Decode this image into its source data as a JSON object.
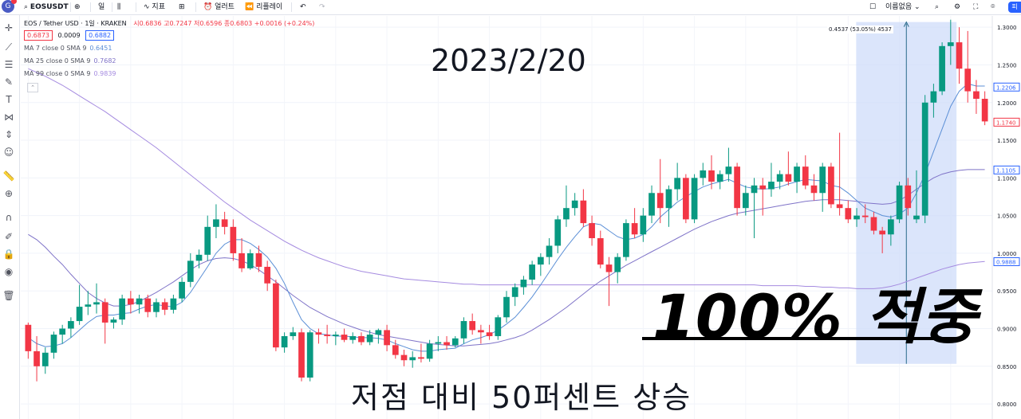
{
  "toolbar": {
    "logo": "G",
    "symbol": "EOSUSDT",
    "interval": "일",
    "indicators": "지표",
    "alert": "얼러트",
    "replay": "리플레이",
    "undo_icon": "undo-icon",
    "redo_icon": "redo-icon",
    "right_label": "이름없음"
  },
  "legend": {
    "title": "EOS / Tether USD · 1일 · KRAKEN",
    "ohlc": "시0.6836 고0.7247 저0.6596 종0.6803 +0.0016 (+0.24%)",
    "bid": "0.6873",
    "spread": "0.0009",
    "ask": "0.6882",
    "ma7_label": "MA 7 close 0 SMA 9",
    "ma7_value": "0.6451",
    "ma25_label": "MA 25 close 0 SMA 9",
    "ma25_value": "0.7682",
    "ma99_label": "MA 99 close 0 SMA 9",
    "ma99_value": "0.9839"
  },
  "overlay": {
    "date": "2023/2/20",
    "claim": "100% 적중",
    "caption": "저점 대비 50퍼센트 상승",
    "measure": "0.4537 (53.05%) 4537"
  },
  "colors": {
    "up": "#089981",
    "down": "#f23645",
    "ma7": "#5b8fd6",
    "ma25": "#7f73c8",
    "ma99": "#a58be0",
    "measure_fill": "#cfdcf9",
    "measure_line": "#2962ff"
  },
  "chart_data": {
    "type": "candlestick",
    "title": "EOS / Tether USD · 1일 · KRAKEN",
    "ylim": [
      0.78,
      1.315
    ],
    "y_ticks": [
      0.8,
      0.85,
      0.9,
      0.95,
      1.0,
      1.05,
      1.1,
      1.15,
      1.2,
      1.25,
      1.3
    ],
    "y_tick_labels": [
      "0.8000",
      "0.8500",
      "0.9000",
      "0.9500",
      "1.0000",
      "1.0500",
      "1.1000",
      "1.1500",
      "1.2000",
      "1.2500",
      "1.3000"
    ],
    "price_tags": [
      {
        "value": 1.2206,
        "label": "1.2206",
        "color": "#2962ff"
      },
      {
        "value": 1.174,
        "label": "1.1740",
        "color": "#f23645"
      },
      {
        "value": 1.1105,
        "label": "1.1105",
        "color": "#2962ff"
      },
      {
        "value": 0.9888,
        "label": "0.9888",
        "color": "#2962ff"
      }
    ],
    "candles": [
      [
        0.905,
        0.908,
        0.86,
        0.87
      ],
      [
        0.87,
        0.89,
        0.83,
        0.85
      ],
      [
        0.85,
        0.875,
        0.84,
        0.868
      ],
      [
        0.868,
        0.896,
        0.86,
        0.892
      ],
      [
        0.892,
        0.905,
        0.88,
        0.9
      ],
      [
        0.9,
        0.915,
        0.888,
        0.91
      ],
      [
        0.91,
        0.958,
        0.905,
        0.929
      ],
      [
        0.929,
        0.95,
        0.918,
        0.932
      ],
      [
        0.932,
        0.96,
        0.92,
        0.935
      ],
      [
        0.935,
        0.94,
        0.88,
        0.908
      ],
      [
        0.908,
        0.915,
        0.9,
        0.912
      ],
      [
        0.912,
        0.945,
        0.905,
        0.94
      ],
      [
        0.94,
        0.95,
        0.92,
        0.932
      ],
      [
        0.932,
        0.945,
        0.92,
        0.94
      ],
      [
        0.94,
        0.945,
        0.915,
        0.922
      ],
      [
        0.922,
        0.94,
        0.915,
        0.935
      ],
      [
        0.935,
        0.94,
        0.918,
        0.925
      ],
      [
        0.925,
        0.945,
        0.92,
        0.94
      ],
      [
        0.94,
        0.968,
        0.935,
        0.962
      ],
      [
        0.962,
        1.0,
        0.955,
        0.99
      ],
      [
        0.99,
        1.005,
        0.98,
        0.998
      ],
      [
        0.998,
        1.05,
        0.99,
        1.035
      ],
      [
        1.035,
        1.065,
        1.02,
        1.045
      ],
      [
        1.045,
        1.055,
        1.025,
        1.035
      ],
      [
        1.035,
        1.045,
        0.99,
        1.0
      ],
      [
        1.0,
        1.02,
        0.975,
        0.98
      ],
      [
        0.98,
        1.005,
        0.978,
        1.0
      ],
      [
        1.0,
        1.01,
        0.975,
        0.982
      ],
      [
        0.982,
        0.99,
        0.95,
        0.96
      ],
      [
        0.96,
        0.965,
        0.87,
        0.875
      ],
      [
        0.875,
        0.895,
        0.868,
        0.89
      ],
      [
        0.89,
        0.902,
        0.885,
        0.895
      ],
      [
        0.895,
        0.9,
        0.83,
        0.835
      ],
      [
        0.835,
        0.898,
        0.83,
        0.895
      ],
      [
        0.895,
        0.9,
        0.88,
        0.892
      ],
      [
        0.892,
        0.905,
        0.88,
        0.89
      ],
      [
        0.89,
        0.896,
        0.878,
        0.892
      ],
      [
        0.892,
        0.9,
        0.882,
        0.885
      ],
      [
        0.885,
        0.895,
        0.88,
        0.89
      ],
      [
        0.89,
        0.895,
        0.878,
        0.882
      ],
      [
        0.882,
        0.898,
        0.878,
        0.892
      ],
      [
        0.892,
        0.9,
        0.88,
        0.898
      ],
      [
        0.898,
        0.905,
        0.87,
        0.878
      ],
      [
        0.878,
        0.885,
        0.86,
        0.865
      ],
      [
        0.865,
        0.872,
        0.85,
        0.858
      ],
      [
        0.858,
        0.87,
        0.848,
        0.862
      ],
      [
        0.862,
        0.88,
        0.855,
        0.86
      ],
      [
        0.86,
        0.885,
        0.856,
        0.88
      ],
      [
        0.88,
        0.89,
        0.87,
        0.882
      ],
      [
        0.882,
        0.89,
        0.872,
        0.878
      ],
      [
        0.878,
        0.89,
        0.875,
        0.887
      ],
      [
        0.887,
        0.915,
        0.88,
        0.91
      ],
      [
        0.91,
        0.92,
        0.892,
        0.898
      ],
      [
        0.898,
        0.905,
        0.88,
        0.895
      ],
      [
        0.895,
        0.905,
        0.885,
        0.89
      ],
      [
        0.89,
        0.918,
        0.885,
        0.915
      ],
      [
        0.915,
        0.95,
        0.908,
        0.942
      ],
      [
        0.942,
        0.96,
        0.93,
        0.955
      ],
      [
        0.955,
        0.97,
        0.945,
        0.965
      ],
      [
        0.965,
        0.99,
        0.958,
        0.985
      ],
      [
        0.985,
        1.0,
        0.97,
        0.995
      ],
      [
        0.995,
        1.02,
        0.985,
        1.01
      ],
      [
        1.01,
        1.05,
        1.0,
        1.045
      ],
      [
        1.045,
        1.09,
        1.035,
        1.06
      ],
      [
        1.06,
        1.08,
        1.05,
        1.07
      ],
      [
        1.07,
        1.085,
        1.035,
        1.04
      ],
      [
        1.04,
        1.05,
        1.01,
        1.02
      ],
      [
        1.02,
        1.03,
        0.98,
        0.985
      ],
      [
        0.985,
        0.995,
        0.93,
        0.975
      ],
      [
        0.975,
        1.0,
        0.96,
        0.995
      ],
      [
        0.995,
        1.045,
        0.99,
        1.04
      ],
      [
        1.04,
        1.06,
        1.02,
        1.025
      ],
      [
        1.025,
        1.06,
        1.015,
        1.05
      ],
      [
        1.05,
        1.09,
        1.04,
        1.08
      ],
      [
        1.08,
        1.125,
        1.04,
        1.06
      ],
      [
        1.06,
        1.09,
        1.035,
        1.085
      ],
      [
        1.085,
        1.12,
        1.07,
        1.1
      ],
      [
        1.1,
        1.105,
        1.04,
        1.045
      ],
      [
        1.045,
        1.105,
        1.04,
        1.1
      ],
      [
        1.1,
        1.12,
        1.09,
        1.11
      ],
      [
        1.11,
        1.13,
        1.085,
        1.095
      ],
      [
        1.095,
        1.11,
        1.085,
        1.105
      ],
      [
        1.105,
        1.14,
        1.095,
        1.115
      ],
      [
        1.115,
        1.12,
        1.05,
        1.06
      ],
      [
        1.06,
        1.09,
        1.05,
        1.08
      ],
      [
        1.08,
        1.1,
        1.02,
        1.09
      ],
      [
        1.09,
        1.1,
        1.05,
        1.085
      ],
      [
        1.085,
        1.12,
        1.075,
        1.095
      ],
      [
        1.095,
        1.11,
        1.085,
        1.105
      ],
      [
        1.105,
        1.135,
        1.09,
        1.095
      ],
      [
        1.095,
        1.12,
        1.08,
        1.115
      ],
      [
        1.115,
        1.13,
        1.085,
        1.09
      ],
      [
        1.09,
        1.105,
        1.07,
        1.08
      ],
      [
        1.08,
        1.12,
        1.055,
        1.115
      ],
      [
        1.115,
        1.12,
        1.06,
        1.065
      ],
      [
        1.065,
        1.16,
        1.05,
        1.06
      ],
      [
        1.06,
        1.07,
        1.04,
        1.045
      ],
      [
        1.045,
        1.06,
        1.035,
        1.05
      ],
      [
        1.05,
        1.065,
        1.04,
        1.048
      ],
      [
        1.048,
        1.055,
        1.025,
        1.03
      ],
      [
        1.03,
        1.035,
        1.0,
        1.025
      ],
      [
        1.025,
        1.05,
        1.01,
        1.045
      ],
      [
        1.045,
        1.095,
        1.04,
        1.09
      ],
      [
        1.09,
        1.1,
        1.05,
        1.06
      ],
      [
        1.045,
        1.11,
        1.04,
        1.05
      ],
      [
        1.05,
        1.21,
        1.04,
        1.2
      ],
      [
        1.2,
        1.225,
        1.18,
        1.215
      ],
      [
        1.215,
        1.28,
        1.21,
        1.275
      ],
      [
        1.275,
        1.31,
        1.25,
        1.28
      ],
      [
        1.28,
        1.3,
        1.225,
        1.245
      ],
      [
        1.245,
        1.295,
        1.2,
        1.215
      ],
      [
        1.215,
        1.23,
        1.185,
        1.205
      ],
      [
        1.205,
        1.215,
        1.17,
        1.175
      ]
    ],
    "ma7": [
      0.888,
      0.88,
      0.876,
      0.877,
      0.88,
      0.888,
      0.898,
      0.908,
      0.916,
      0.918,
      0.918,
      0.92,
      0.921,
      0.926,
      0.93,
      0.932,
      0.93,
      0.929,
      0.935,
      0.948,
      0.965,
      0.982,
      1.0,
      1.012,
      1.018,
      1.018,
      1.013,
      1.005,
      0.995,
      0.98,
      0.96,
      0.935,
      0.912,
      0.9,
      0.893,
      0.892,
      0.89,
      0.89,
      0.889,
      0.888,
      0.888,
      0.887,
      0.885,
      0.88,
      0.876,
      0.872,
      0.87,
      0.87,
      0.872,
      0.873,
      0.874,
      0.88,
      0.885,
      0.888,
      0.892,
      0.898,
      0.906,
      0.915,
      0.928,
      0.942,
      0.958,
      0.975,
      0.992,
      1.008,
      1.022,
      1.035,
      1.04,
      1.038,
      1.03,
      1.022,
      1.018,
      1.02,
      1.025,
      1.035,
      1.048,
      1.058,
      1.068,
      1.075,
      1.082,
      1.088,
      1.092,
      1.095,
      1.098,
      1.093,
      1.088,
      1.086,
      1.085,
      1.086,
      1.088,
      1.092,
      1.095,
      1.098,
      1.097,
      1.096,
      1.09,
      1.088,
      1.08,
      1.07,
      1.06,
      1.055,
      1.05,
      1.048,
      1.052,
      1.06,
      1.08,
      1.105,
      1.135,
      1.165,
      1.195,
      1.215,
      1.225,
      1.222,
      1.222
    ],
    "ma25": [
      1.025,
      1.018,
      1.008,
      0.996,
      0.985,
      0.972,
      0.96,
      0.948,
      0.94,
      0.934,
      0.93,
      0.93,
      0.932,
      0.936,
      0.942,
      0.948,
      0.955,
      0.962,
      0.97,
      0.978,
      0.985,
      0.99,
      0.993,
      0.994,
      0.993,
      0.99,
      0.985,
      0.978,
      0.97,
      0.962,
      0.953,
      0.944,
      0.936,
      0.928,
      0.922,
      0.916,
      0.911,
      0.906,
      0.902,
      0.898,
      0.895,
      0.892,
      0.89,
      0.888,
      0.886,
      0.884,
      0.882,
      0.88,
      0.879,
      0.878,
      0.877,
      0.877,
      0.878,
      0.879,
      0.88,
      0.882,
      0.885,
      0.888,
      0.892,
      0.898,
      0.905,
      0.912,
      0.92,
      0.928,
      0.937,
      0.946,
      0.955,
      0.963,
      0.97,
      0.977,
      0.984,
      0.99,
      0.996,
      1.002,
      1.008,
      1.014,
      1.02,
      1.026,
      1.032,
      1.037,
      1.042,
      1.046,
      1.05,
      1.053,
      1.055,
      1.057,
      1.059,
      1.061,
      1.063,
      1.065,
      1.067,
      1.069,
      1.07,
      1.071,
      1.071,
      1.071,
      1.07,
      1.069,
      1.067,
      1.066,
      1.065,
      1.066,
      1.07,
      1.077,
      1.085,
      1.093,
      1.1,
      1.105,
      1.108,
      1.11,
      1.111,
      1.111,
      1.111
    ],
    "ma99": [
      1.245,
      1.24,
      1.235,
      1.229,
      1.223,
      1.216,
      1.209,
      1.202,
      1.195,
      1.188,
      1.18,
      1.172,
      1.164,
      1.156,
      1.148,
      1.14,
      1.131,
      1.122,
      1.113,
      1.104,
      1.095,
      1.086,
      1.077,
      1.068,
      1.06,
      1.052,
      1.044,
      1.037,
      1.03,
      1.023,
      1.016,
      1.01,
      1.004,
      0.999,
      0.994,
      0.99,
      0.986,
      0.982,
      0.979,
      0.976,
      0.974,
      0.972,
      0.97,
      0.968,
      0.966,
      0.965,
      0.964,
      0.963,
      0.962,
      0.961,
      0.96,
      0.959,
      0.959,
      0.958,
      0.958,
      0.958,
      0.958,
      0.958,
      0.958,
      0.958,
      0.958,
      0.958,
      0.958,
      0.958,
      0.958,
      0.958,
      0.958,
      0.958,
      0.958,
      0.958,
      0.958,
      0.958,
      0.958,
      0.958,
      0.958,
      0.958,
      0.958,
      0.958,
      0.958,
      0.958,
      0.958,
      0.958,
      0.958,
      0.958,
      0.958,
      0.958,
      0.957,
      0.957,
      0.957,
      0.957,
      0.957,
      0.956,
      0.956,
      0.955,
      0.955,
      0.954,
      0.954,
      0.953,
      0.953,
      0.953,
      0.954,
      0.956,
      0.959,
      0.963,
      0.967,
      0.971,
      0.975,
      0.979,
      0.982,
      0.985,
      0.987,
      0.988,
      0.989
    ],
    "measure": {
      "from_index": 98,
      "to_index": 108,
      "low": 0.8532,
      "high": 1.3069,
      "change": "0.4537 (53.05%) 4537"
    }
  }
}
